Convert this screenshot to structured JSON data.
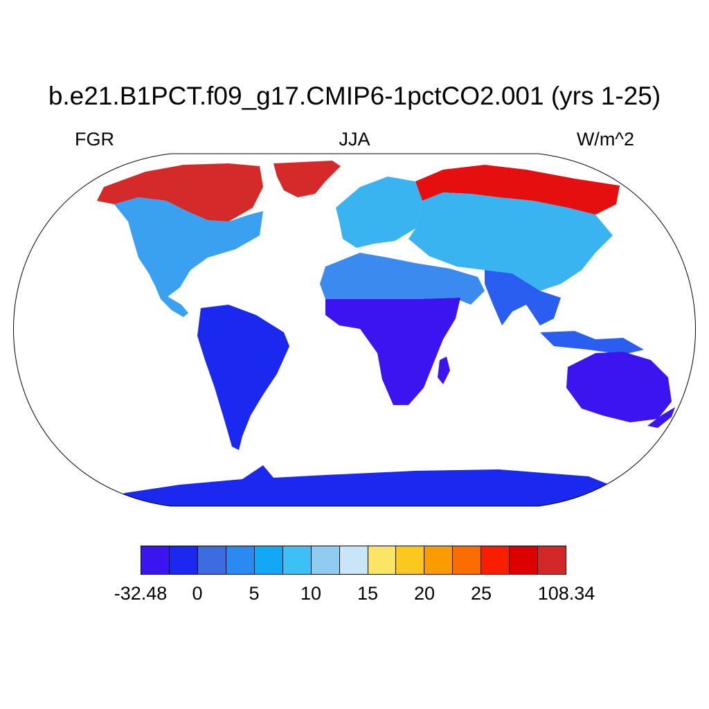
{
  "title": "b.e21.B1PCT.f09_g17.CMIP6-1pctCO2.001 (yrs 1-25)",
  "variable": "FGR",
  "season": "JJA",
  "units": "W/m^2",
  "map": {
    "projection": "robinson",
    "ocean_color": "#ffffff",
    "regions": [
      {
        "name": "greenland",
        "level_color": "#d42a2a"
      },
      {
        "name": "canadian-arctic",
        "level_color": "#d42a2a"
      },
      {
        "name": "siberia-north",
        "level_color": "#e60f0f"
      },
      {
        "name": "north-america",
        "level_color": "#3aa0f0"
      },
      {
        "name": "south-america",
        "level_color": "#1a28f0"
      },
      {
        "name": "europe",
        "level_color": "#3ab4f0"
      },
      {
        "name": "africa-north",
        "level_color": "#3a8af0"
      },
      {
        "name": "africa-south",
        "level_color": "#3c14f0"
      },
      {
        "name": "asia",
        "level_color": "#3ab4f0"
      },
      {
        "name": "india-se-asia",
        "level_color": "#2a5ef0"
      },
      {
        "name": "australia",
        "level_color": "#3c14f0"
      },
      {
        "name": "antarctica",
        "level_color": "#1a28f0"
      }
    ]
  },
  "colorbar": {
    "colors": [
      "#3c14f0",
      "#1a28f0",
      "#3c6ce0",
      "#2a8af0",
      "#12a8f5",
      "#3cc0f5",
      "#90ccf0",
      "#c8e6f8",
      "#fae664",
      "#fac81e",
      "#fa9c00",
      "#fa6e00",
      "#fa1e00",
      "#dc0000",
      "#d22828"
    ],
    "labels": [
      {
        "text": "-32.48",
        "boundary": 0
      },
      {
        "text": "0",
        "boundary": 2
      },
      {
        "text": "5",
        "boundary": 4
      },
      {
        "text": "10",
        "boundary": 6
      },
      {
        "text": "15",
        "boundary": 8
      },
      {
        "text": "20",
        "boundary": 10
      },
      {
        "text": "25",
        "boundary": 12
      },
      {
        "text": "108.34",
        "boundary": 15
      }
    ]
  }
}
